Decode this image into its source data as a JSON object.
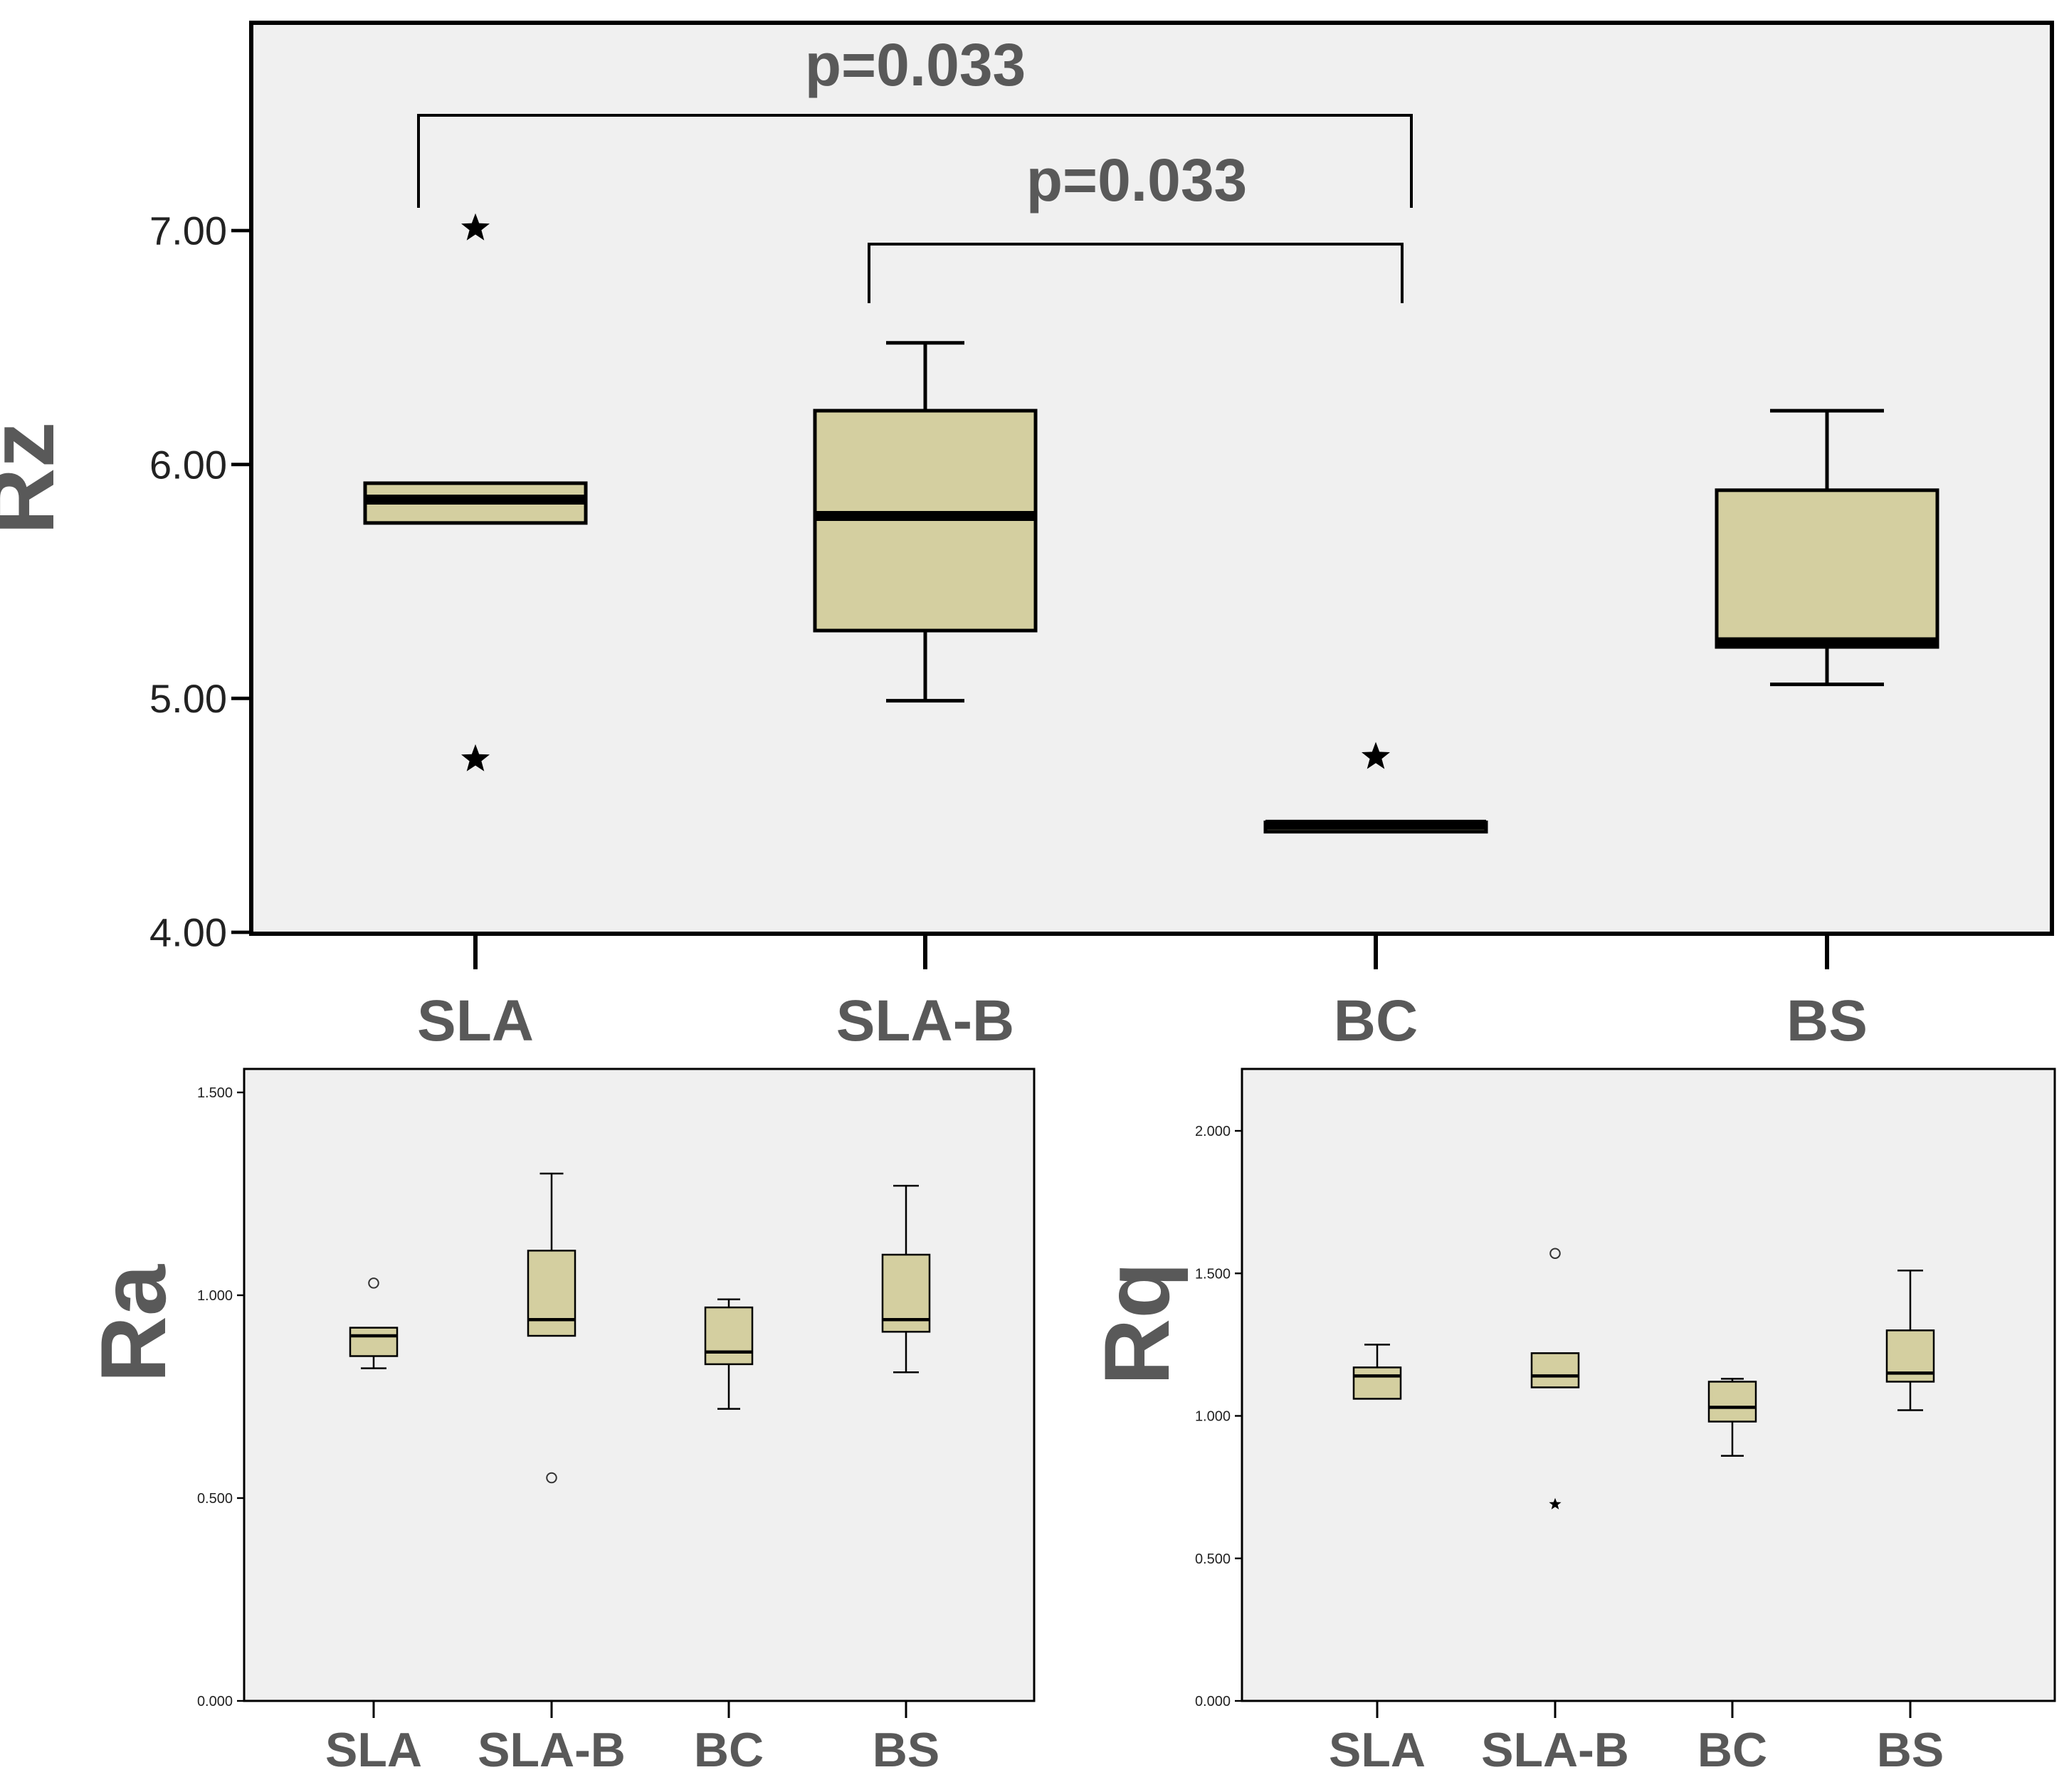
{
  "colors": {
    "box_fill": "#d4cfa0",
    "plot_bg": "#f0f0f0",
    "axis": "#000000",
    "label_gray": "#595959"
  },
  "chart_data": [
    {
      "type": "boxplot",
      "id": "rz",
      "ylabel": "Rz",
      "xlabel": "",
      "ylim": [
        4.0,
        7.9
      ],
      "yticks": [
        4.0,
        5.0,
        6.0,
        7.0
      ],
      "ytick_labels": [
        "4.00",
        "5.00",
        "6.00",
        "7.00"
      ],
      "categories": [
        "SLA",
        "SLA-B",
        "BC",
        "BS"
      ],
      "boxes": [
        {
          "q1": 5.75,
          "median": 5.85,
          "q3": 5.92,
          "whisker_low": null,
          "whisker_high": null
        },
        {
          "q1": 5.29,
          "median": 5.78,
          "q3": 6.23,
          "whisker_low": 4.99,
          "whisker_high": 6.52
        },
        {
          "q1": 4.43,
          "median": 4.46,
          "q3": 4.47,
          "whisker_low": null,
          "whisker_high": null
        },
        {
          "q1": 5.22,
          "median": 5.24,
          "q3": 5.89,
          "whisker_low": 5.06,
          "whisker_high": 6.23
        }
      ],
      "outliers": [
        {
          "category": "SLA",
          "value": 7.01,
          "marker": "star"
        },
        {
          "category": "SLA",
          "value": 4.74,
          "marker": "star"
        },
        {
          "category": "BC",
          "value": 4.75,
          "marker": "star"
        }
      ],
      "annotations": [
        {
          "text": "p=0.033",
          "from": "SLA",
          "to": "BC"
        },
        {
          "text": "p=0.033",
          "from": "SLA-B",
          "to": "BC"
        }
      ]
    },
    {
      "type": "boxplot",
      "id": "ra",
      "ylabel": "Ra",
      "xlabel": "",
      "ylim": [
        0.0,
        1.56
      ],
      "yticks": [
        0.0,
        0.5,
        1.0,
        1.5
      ],
      "ytick_labels": [
        "0.000",
        "0.500",
        "1.000",
        "1.500"
      ],
      "categories": [
        "SLA",
        "SLA-B",
        "BC",
        "BS"
      ],
      "boxes": [
        {
          "q1": 0.85,
          "median": 0.9,
          "q3": 0.92,
          "whisker_low": 0.82,
          "whisker_high": null
        },
        {
          "q1": 0.9,
          "median": 0.94,
          "q3": 1.11,
          "whisker_low": null,
          "whisker_high": 1.3
        },
        {
          "q1": 0.83,
          "median": 0.86,
          "q3": 0.97,
          "whisker_low": 0.72,
          "whisker_high": 0.99
        },
        {
          "q1": 0.91,
          "median": 0.94,
          "q3": 1.1,
          "whisker_low": 0.81,
          "whisker_high": 1.27
        }
      ],
      "outliers": [
        {
          "category": "SLA",
          "value": 1.03,
          "marker": "circle"
        },
        {
          "category": "SLA-B",
          "value": 0.55,
          "marker": "circle"
        }
      ],
      "annotations": []
    },
    {
      "type": "boxplot",
      "id": "rq",
      "ylabel": "Rq",
      "xlabel": "",
      "ylim": [
        0.0,
        2.23
      ],
      "yticks": [
        0.0,
        0.5,
        1.0,
        1.5,
        2.0
      ],
      "ytick_labels": [
        "0.000",
        "0.500",
        "1.000",
        "1.500",
        "2.000"
      ],
      "categories": [
        "SLA",
        "SLA-B",
        "BC",
        "BS"
      ],
      "boxes": [
        {
          "q1": 1.06,
          "median": 1.14,
          "q3": 1.17,
          "whisker_low": null,
          "whisker_high": 1.25
        },
        {
          "q1": 1.1,
          "median": 1.14,
          "q3": 1.22,
          "whisker_low": null,
          "whisker_high": null
        },
        {
          "q1": 0.98,
          "median": 1.03,
          "q3": 1.12,
          "whisker_low": 0.86,
          "whisker_high": 1.13
        },
        {
          "q1": 1.12,
          "median": 1.15,
          "q3": 1.3,
          "whisker_low": 1.02,
          "whisker_high": 1.51
        }
      ],
      "outliers": [
        {
          "category": "SLA-B",
          "value": 1.57,
          "marker": "circle"
        },
        {
          "category": "SLA-B",
          "value": 0.69,
          "marker": "star"
        }
      ],
      "annotations": []
    }
  ]
}
